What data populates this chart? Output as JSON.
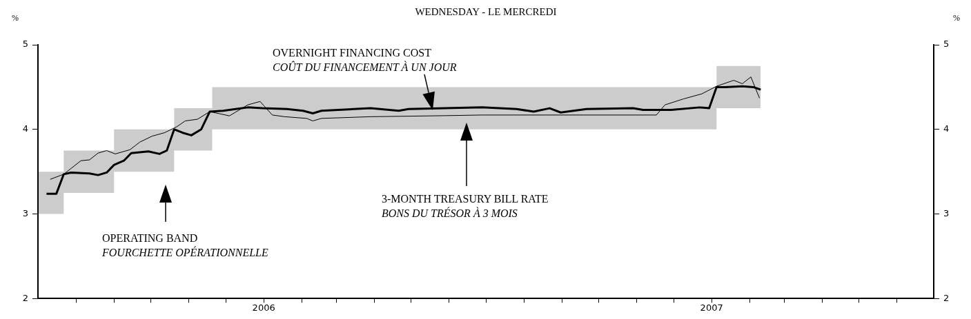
{
  "chart_data": {
    "type": "line",
    "title": "WEDNESDAY - LE MERCREDI",
    "ylabel": "%",
    "y2label": "%",
    "xlim": [
      "2005-07-01",
      "2007-07-01"
    ],
    "xticks": [
      {
        "value": "2005-08-01",
        "label": null
      },
      {
        "value": "2005-09-01",
        "label": null
      },
      {
        "value": "2005-10-01",
        "label": null
      },
      {
        "value": "2005-11-01",
        "label": null
      },
      {
        "value": "2005-12-01",
        "label": null
      },
      {
        "value": "2006-01-01",
        "label": "2006"
      },
      {
        "value": "2006-02-01",
        "label": null
      },
      {
        "value": "2006-03-01",
        "label": null
      },
      {
        "value": "2006-04-01",
        "label": null
      },
      {
        "value": "2006-05-01",
        "label": null
      },
      {
        "value": "2006-06-01",
        "label": null
      },
      {
        "value": "2006-07-01",
        "label": null
      },
      {
        "value": "2006-08-01",
        "label": null
      },
      {
        "value": "2006-09-01",
        "label": null
      },
      {
        "value": "2006-10-01",
        "label": null
      },
      {
        "value": "2006-11-01",
        "label": null
      },
      {
        "value": "2006-12-01",
        "label": null
      },
      {
        "value": "2007-01-01",
        "label": "2007"
      },
      {
        "value": "2007-02-01",
        "label": null
      },
      {
        "value": "2007-03-01",
        "label": null
      },
      {
        "value": "2007-04-01",
        "label": null
      },
      {
        "value": "2007-05-01",
        "label": null
      },
      {
        "value": "2007-06-01",
        "label": null
      }
    ],
    "ylim": [
      2,
      5
    ],
    "yticks": [
      2,
      3,
      4,
      5
    ],
    "y2lim": [
      2,
      5
    ],
    "y2ticks": [
      2,
      3,
      4,
      5
    ],
    "series": [
      {
        "type": "step",
        "color": "#000000",
        "x": [
          "2005-07-01",
          "2005-07-22",
          "2005-09-01",
          "2005-10-20",
          "2005-11-20",
          "2007-01-05",
          "2007-02-10"
        ],
        "values": [
          null,
          null,
          null,
          null,
          null,
          null,
          null
        ],
        "lower": [
          3.0,
          3.25,
          3.5,
          3.75,
          4.0,
          4.25,
          4.25
        ],
        "upper": [
          3.5,
          3.75,
          4.0,
          4.25,
          4.5,
          4.75,
          4.75
        ]
      },
      {
        "type": "line",
        "color": "#000000",
        "x": [
          "2005-07-08",
          "2005-07-16",
          "2005-07-22",
          "2005-07-28",
          "2005-08-12",
          "2005-08-19",
          "2005-08-26",
          "2005-09-01",
          "2005-09-09",
          "2005-09-15",
          "2005-09-29",
          "2005-10-08",
          "2005-10-14",
          "2005-10-20",
          "2005-10-27",
          "2005-11-03",
          "2005-11-11",
          "2005-11-18",
          "2005-11-29",
          "2005-12-09",
          "2005-12-19",
          "2005-12-31",
          "2006-01-20",
          "2006-02-02",
          "2006-02-10",
          "2006-02-17",
          "2006-03-29",
          "2006-04-21",
          "2006-04-29",
          "2006-06-28",
          "2006-07-26",
          "2006-08-09",
          "2006-08-22",
          "2006-08-31",
          "2006-09-21",
          "2006-10-29",
          "2006-11-06",
          "2006-11-29",
          "2006-12-22",
          "2006-12-30",
          "2007-01-05",
          "2007-01-12",
          "2007-01-26",
          "2007-02-04",
          "2007-02-10"
        ],
        "values": [
          3.24,
          3.24,
          3.47,
          3.49,
          3.48,
          3.46,
          3.49,
          3.58,
          3.63,
          3.72,
          3.74,
          3.71,
          3.75,
          4.0,
          3.96,
          3.93,
          4.0,
          4.21,
          4.22,
          4.24,
          4.26,
          4.25,
          4.24,
          4.22,
          4.19,
          4.22,
          4.25,
          4.22,
          4.24,
          4.26,
          4.24,
          4.21,
          4.25,
          4.2,
          4.24,
          4.25,
          4.23,
          4.23,
          4.26,
          4.25,
          4.5,
          4.5,
          4.51,
          4.5,
          4.47
        ]
      },
      {
        "type": "line",
        "color": "#000000",
        "x": [
          "2005-07-11",
          "2005-07-22",
          "2005-08-05",
          "2005-08-12",
          "2005-08-19",
          "2005-08-26",
          "2005-09-02",
          "2005-09-14",
          "2005-09-22",
          "2005-10-02",
          "2005-10-12",
          "2005-10-22",
          "2005-10-29",
          "2005-11-08",
          "2005-11-18",
          "2005-12-04",
          "2005-12-19",
          "2005-12-29",
          "2006-01-08",
          "2006-01-18",
          "2006-02-05",
          "2006-02-10",
          "2006-02-17",
          "2006-03-29",
          "2006-05-19",
          "2006-06-28",
          "2006-11-17",
          "2006-11-24",
          "2006-12-09",
          "2006-12-24",
          "2007-01-05",
          "2007-01-19",
          "2007-01-26",
          "2007-02-02",
          "2007-02-09"
        ],
        "values": [
          3.41,
          3.47,
          3.63,
          3.64,
          3.72,
          3.75,
          3.71,
          3.76,
          3.85,
          3.92,
          3.96,
          4.03,
          4.1,
          4.12,
          4.21,
          4.16,
          4.29,
          4.33,
          4.17,
          4.15,
          4.13,
          4.1,
          4.13,
          4.15,
          4.16,
          4.17,
          4.17,
          4.29,
          4.36,
          4.42,
          4.51,
          4.58,
          4.54,
          4.62,
          4.37
        ]
      }
    ],
    "annotations": [
      "OVERNIGHT FINANCING COST\nCOÛT DU FINANCEMENT À UN JOUR",
      "3-MONTH TREASURY BILL RATE\nBONS DU TRÉSOR À 3 MOIS",
      "OPERATING BAND\nFOURCHETTE OPÉRATIONNELLE"
    ]
  }
}
